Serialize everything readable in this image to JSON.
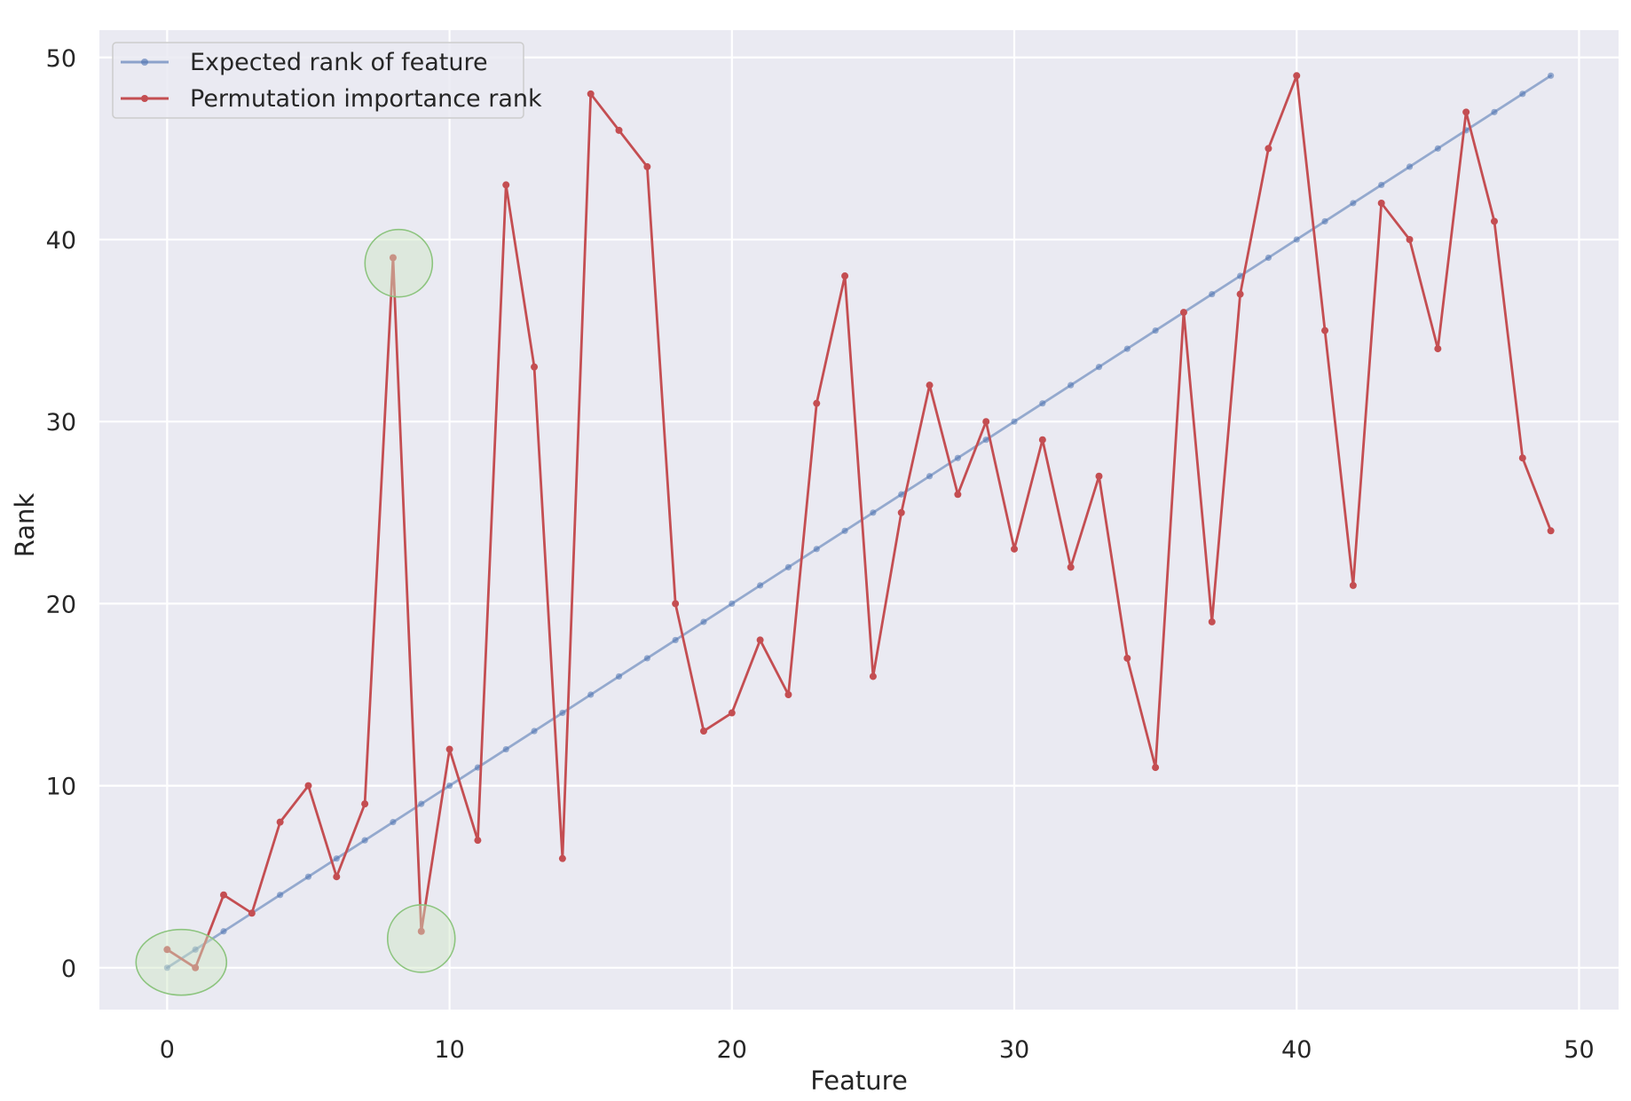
{
  "chart_data": {
    "type": "line",
    "xlabel": "Feature",
    "ylabel": "Rank",
    "xlim": [
      -2.4,
      51.4
    ],
    "ylim": [
      -2.3,
      51.5
    ],
    "xticks": [
      0,
      10,
      20,
      30,
      40,
      50
    ],
    "yticks": [
      0,
      10,
      20,
      30,
      40,
      50
    ],
    "grid": true,
    "legend_position": "top-left",
    "series": [
      {
        "name": "Expected rank of feature",
        "color": "#4c72b0",
        "x": [
          0,
          1,
          2,
          3,
          4,
          5,
          6,
          7,
          8,
          9,
          10,
          11,
          12,
          13,
          14,
          15,
          16,
          17,
          18,
          19,
          20,
          21,
          22,
          23,
          24,
          25,
          26,
          27,
          28,
          29,
          30,
          31,
          32,
          33,
          34,
          35,
          36,
          37,
          38,
          39,
          40,
          41,
          42,
          43,
          44,
          45,
          46,
          47,
          48,
          49
        ],
        "y": [
          0,
          1,
          2,
          3,
          4,
          5,
          6,
          7,
          8,
          9,
          10,
          11,
          12,
          13,
          14,
          15,
          16,
          17,
          18,
          19,
          20,
          21,
          22,
          23,
          24,
          25,
          26,
          27,
          28,
          29,
          30,
          31,
          32,
          33,
          34,
          35,
          36,
          37,
          38,
          39,
          40,
          41,
          42,
          43,
          44,
          45,
          46,
          47,
          48,
          49
        ]
      },
      {
        "name": "Permutation importance rank",
        "color": "#c44e52",
        "x": [
          0,
          1,
          2,
          3,
          4,
          5,
          6,
          7,
          8,
          9,
          10,
          11,
          12,
          13,
          14,
          15,
          16,
          17,
          18,
          19,
          20,
          21,
          22,
          23,
          24,
          25,
          26,
          27,
          28,
          29,
          30,
          31,
          32,
          33,
          34,
          35,
          36,
          37,
          38,
          39,
          40,
          41,
          42,
          43,
          44,
          45,
          46,
          47,
          48,
          49
        ],
        "y": [
          1,
          0,
          4,
          3,
          8,
          10,
          5,
          9,
          39,
          2,
          12,
          7,
          43,
          33,
          6,
          48,
          46,
          44,
          20,
          13,
          14,
          18,
          15,
          31,
          38,
          16,
          25,
          32,
          26,
          30,
          23,
          29,
          22,
          27,
          17,
          11,
          36,
          19,
          37,
          45,
          49,
          35,
          21,
          42,
          40,
          34,
          47,
          41,
          28,
          24
        ]
      }
    ],
    "highlights": [
      {
        "x": 0.5,
        "y": 0.3
      },
      {
        "x": 8.2,
        "y": 38.7
      },
      {
        "x": 9.0,
        "y": 1.6
      }
    ]
  },
  "colors": {
    "plot_background": "#eaeaf2",
    "grid": "#ffffff",
    "highlight_fill": "#cfe6c4",
    "highlight_stroke": "#8cc47e"
  }
}
